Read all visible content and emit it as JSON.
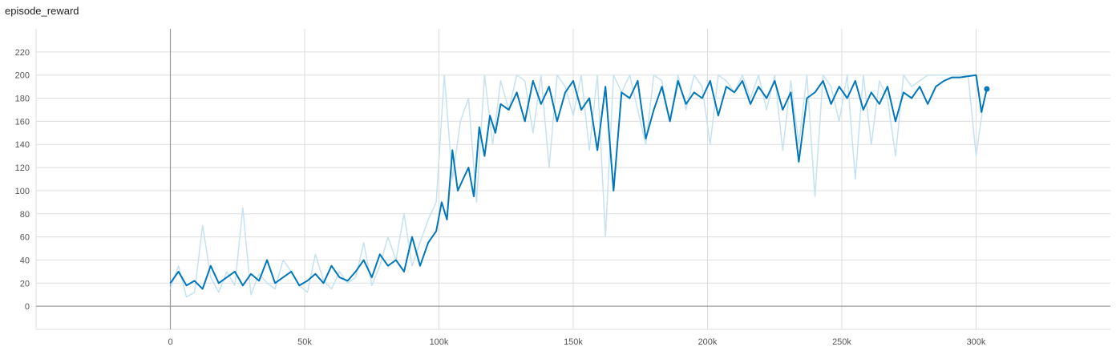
{
  "chart_data": {
    "type": "line",
    "title": "episode_reward",
    "xlabel": "",
    "ylabel": "",
    "xlim": [
      -50000,
      350000
    ],
    "ylim": [
      -20,
      240
    ],
    "x_ticks": [
      0,
      50000,
      100000,
      150000,
      200000,
      250000,
      300000
    ],
    "x_tick_labels": [
      "0",
      "50k",
      "100k",
      "150k",
      "200k",
      "250k",
      "300k"
    ],
    "y_ticks": [
      0,
      20,
      40,
      60,
      80,
      100,
      120,
      140,
      160,
      180,
      200,
      220
    ],
    "y_tick_labels": [
      "0",
      "20",
      "40",
      "60",
      "80",
      "100",
      "120",
      "140",
      "160",
      "180",
      "200",
      "220"
    ],
    "grid": true,
    "colors": {
      "smoothed": "#0077bb",
      "raw": "#c6e2f0",
      "axis": "#999999",
      "grid": "#dddddd"
    },
    "series": [
      {
        "x": [
          0,
          3000,
          6000,
          9000,
          12000,
          15000,
          18000,
          21000,
          24000,
          27000,
          30000,
          33000,
          36000,
          39000,
          42000,
          45000,
          48000,
          51000,
          54000,
          57000,
          60000,
          63000,
          66000,
          69000,
          72000,
          75000,
          78000,
          81000,
          84000,
          87000,
          90000,
          93000,
          96000,
          99000,
          102000,
          105000,
          108000,
          111000,
          114000,
          117000,
          120000,
          123000,
          126000,
          129000,
          132000,
          135000,
          138000,
          141000,
          144000,
          147000,
          150000,
          153000,
          156000,
          159000,
          162000,
          165000,
          168000,
          171000,
          174000,
          177000,
          180000,
          183000,
          186000,
          189000,
          192000,
          195000,
          198000,
          201000,
          204000,
          207000,
          210000,
          213000,
          216000,
          219000,
          222000,
          225000,
          228000,
          231000,
          234000,
          237000,
          240000,
          243000,
          246000,
          249000,
          252000,
          255000,
          258000,
          261000,
          264000,
          267000,
          270000,
          273000,
          276000,
          279000,
          282000,
          285000,
          288000,
          291000,
          294000,
          297000,
          300000,
          303000
        ],
        "values": [
          15,
          35,
          8,
          12,
          70,
          25,
          12,
          30,
          18,
          85,
          10,
          28,
          20,
          15,
          40,
          30,
          18,
          12,
          45,
          22,
          15,
          30,
          20,
          25,
          55,
          18,
          35,
          60,
          40,
          80,
          35,
          55,
          75,
          90,
          200,
          110,
          160,
          180,
          90,
          200,
          140,
          195,
          170,
          200,
          195,
          150,
          200,
          120,
          200,
          190,
          165,
          200,
          135,
          200,
          60,
          200,
          185,
          200,
          170,
          140,
          200,
          195,
          160,
          200,
          170,
          200,
          190,
          140,
          200,
          195,
          185,
          200,
          180,
          200,
          170,
          200,
          135,
          195,
          140,
          200,
          95,
          200,
          190,
          160,
          200,
          110,
          200,
          140,
          195,
          180,
          130,
          200,
          190,
          195,
          200,
          200,
          200,
          200,
          200,
          200,
          130,
          180
        ]
      },
      {
        "x": [
          0,
          3000,
          6000,
          9000,
          12000,
          15000,
          18000,
          21000,
          24000,
          27000,
          30000,
          33000,
          36000,
          39000,
          42000,
          45000,
          48000,
          51000,
          54000,
          57000,
          60000,
          63000,
          66000,
          69000,
          72000,
          75000,
          78000,
          81000,
          84000,
          87000,
          90000,
          93000,
          96000,
          99000,
          101000,
          103000,
          105000,
          107000,
          109000,
          111000,
          113000,
          115000,
          117000,
          119000,
          121000,
          123000,
          126000,
          129000,
          132000,
          135000,
          138000,
          141000,
          144000,
          147000,
          150000,
          153000,
          156000,
          159000,
          162000,
          165000,
          168000,
          171000,
          174000,
          177000,
          180000,
          183000,
          186000,
          189000,
          192000,
          195000,
          198000,
          201000,
          204000,
          207000,
          210000,
          213000,
          216000,
          219000,
          222000,
          225000,
          228000,
          231000,
          234000,
          237000,
          240000,
          243000,
          246000,
          249000,
          252000,
          255000,
          258000,
          261000,
          264000,
          267000,
          270000,
          273000,
          276000,
          279000,
          282000,
          285000,
          288000,
          291000,
          294000,
          297000,
          300000,
          302000,
          304000
        ],
        "values": [
          20,
          30,
          18,
          22,
          15,
          35,
          20,
          25,
          30,
          18,
          28,
          22,
          40,
          20,
          25,
          30,
          18,
          22,
          28,
          20,
          35,
          25,
          22,
          30,
          40,
          25,
          45,
          35,
          40,
          30,
          60,
          35,
          55,
          65,
          90,
          75,
          135,
          100,
          110,
          120,
          95,
          155,
          130,
          165,
          150,
          175,
          170,
          185,
          160,
          195,
          175,
          190,
          160,
          185,
          195,
          170,
          180,
          135,
          190,
          100,
          185,
          180,
          195,
          145,
          170,
          190,
          160,
          195,
          175,
          185,
          180,
          195,
          165,
          190,
          185,
          195,
          175,
          190,
          180,
          195,
          170,
          185,
          125,
          180,
          185,
          195,
          175,
          190,
          180,
          195,
          170,
          185,
          175,
          190,
          160,
          185,
          180,
          190,
          175,
          190,
          195,
          198,
          198,
          199,
          200,
          168,
          188
        ]
      }
    ]
  }
}
